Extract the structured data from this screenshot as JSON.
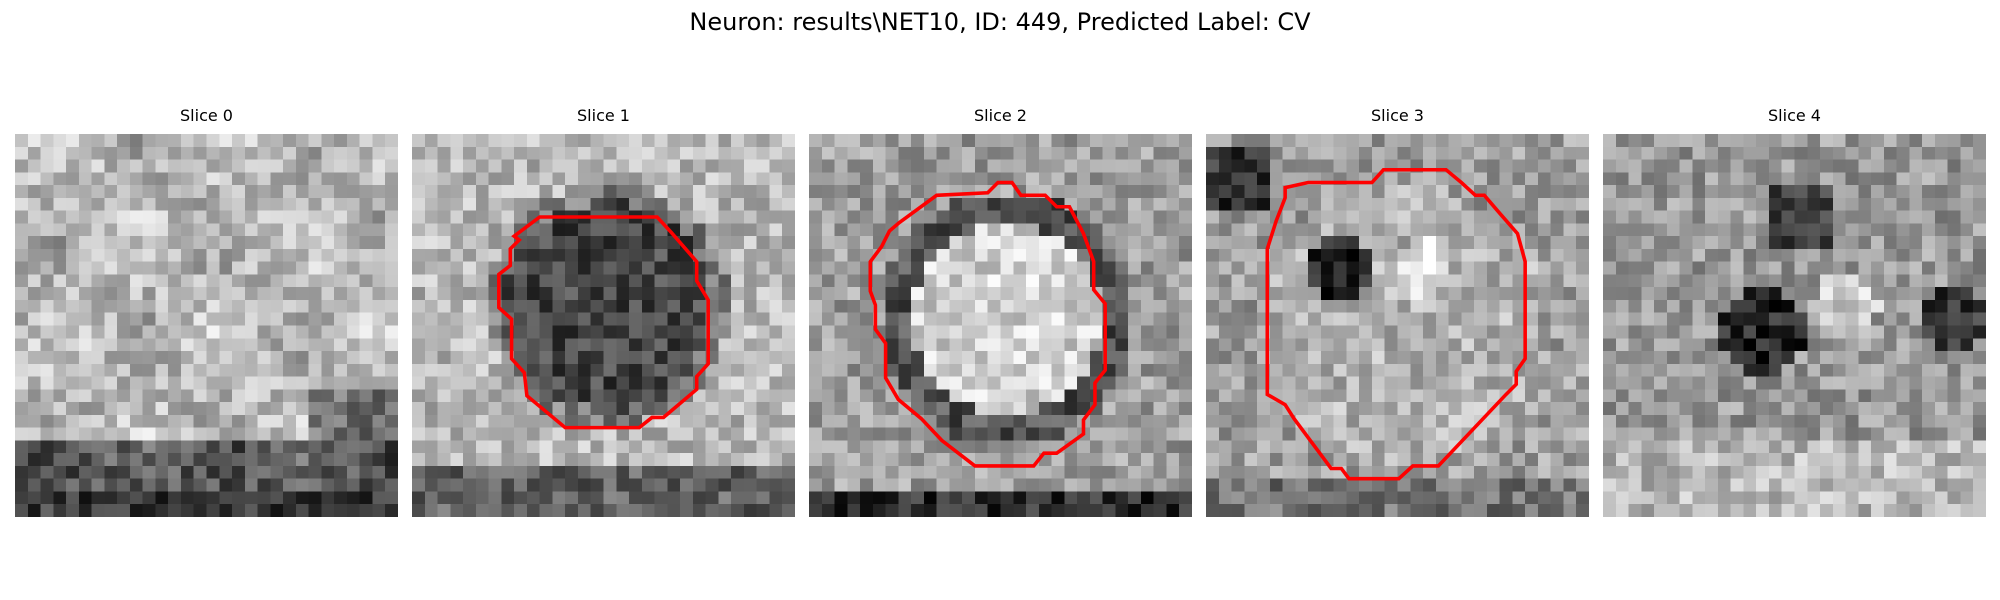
{
  "figure": {
    "title": "Neuron: results\\NET10, ID: 449, Predicted Label: CV"
  },
  "colors": {
    "background": "#ffffff",
    "contour": "#ff0000"
  },
  "panels": [
    {
      "title": "Slice 0",
      "has_contour": false
    },
    {
      "title": "Slice 1",
      "has_contour": true
    },
    {
      "title": "Slice 2",
      "has_contour": true
    },
    {
      "title": "Slice 3",
      "has_contour": true
    },
    {
      "title": "Slice 4",
      "has_contour": false
    }
  ]
}
